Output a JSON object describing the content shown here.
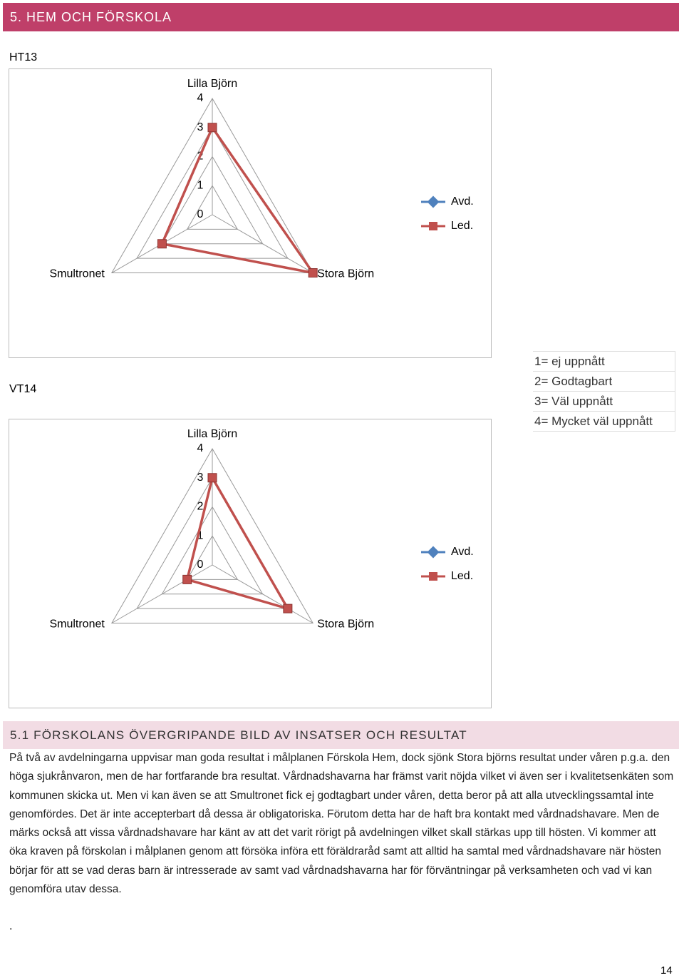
{
  "header": {
    "title": "5. HEM OCH FÖRSKOLA"
  },
  "chart_data": [
    {
      "type": "radar",
      "title": "HT13",
      "categories": [
        "Lilla Björn",
        "Stora Björn",
        "Smultronet"
      ],
      "series": [
        {
          "name": "Avd.",
          "color": "#4f81bd",
          "values": [
            null,
            null,
            null
          ]
        },
        {
          "name": "Led.",
          "color": "#c0504d",
          "values": [
            3,
            4,
            2
          ]
        }
      ],
      "ylim": [
        0,
        4
      ],
      "yticks": [
        0,
        1,
        2,
        3,
        4
      ],
      "grid": true,
      "legend": "right"
    },
    {
      "type": "radar",
      "title": "VT14",
      "categories": [
        "Lilla Björn",
        "Stora Björn",
        "Smultronet"
      ],
      "series": [
        {
          "name": "Avd.",
          "color": "#4f81bd",
          "values": [
            null,
            null,
            null
          ]
        },
        {
          "name": "Led.",
          "color": "#c0504d",
          "values": [
            3,
            3,
            1
          ]
        }
      ],
      "ylim": [
        0,
        4
      ],
      "yticks": [
        0,
        1,
        2,
        3,
        4
      ],
      "grid": true,
      "legend": "right"
    }
  ],
  "scale": [
    "1= ej uppnått",
    "2= Godtagbart",
    "3= Väl uppnått",
    "4= Mycket väl uppnått"
  ],
  "section": {
    "heading": "5.1 FÖRSKOLANS ÖVERGRIPANDE BILD AV INSATSER OCH RESULTAT",
    "paragraph": "På två av avdelningarna uppvisar man goda resultat i målplanen Förskola Hem, dock sjönk Stora björns resultat under våren p.g.a. den höga sjukrånvaron, men de har fortfarande bra resultat. Vårdnadshavarna har främst varit nöjda vilket vi även ser i kvalitetsenkäten som kommunen skicka ut. Men vi kan även se att Smultronet fick ej godtagbart under våren, detta beror på att alla utvecklingssamtal inte genomfördes. Det är inte accepterbart då dessa är obligatoriska. Förutom detta har de haft bra kontakt med vårdnadshavare. Men de märks också att vissa vårdnadshavare har känt av att det varit rörigt på avdelningen vilket skall stärkas upp till hösten. Vi kommer att öka kraven på förskolan i målplanen genom att försöka införa ett föräldraråd samt att alltid ha samtal med vårdnadshavare när hösten börjar för att se vad deras barn är intresserade av samt vad vårdnadshavarna har för förväntningar på verksamheten och vad vi kan genomföra utav dessa.",
    "dot": "."
  },
  "page_number": "14"
}
